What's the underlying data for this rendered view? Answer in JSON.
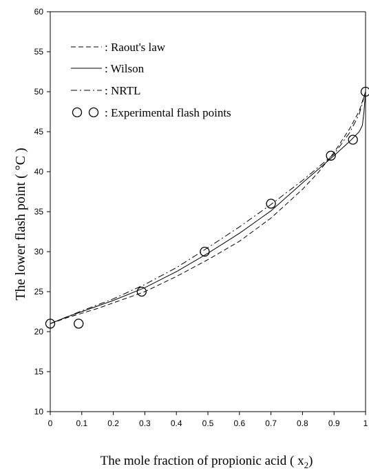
{
  "chart_data": {
    "type": "line",
    "xlabel": "The mole fraction of propionic acid ( x",
    "xlabel_sub": "2",
    "xlabel_close": ")",
    "ylabel": "The lower flash point ( °C )",
    "xlim": [
      0,
      1
    ],
    "ylim": [
      10,
      60
    ],
    "xticks": [
      0,
      0.1,
      0.2,
      0.3,
      0.4,
      0.5,
      0.6,
      0.7,
      0.8,
      0.9,
      1
    ],
    "xtick_labels": [
      "0",
      "0.1",
      "0.2",
      "0.3",
      "0.4",
      "0.5",
      "0.6",
      "0.7",
      "0.8",
      "0.9",
      "1"
    ],
    "yticks": [
      10,
      15,
      20,
      25,
      30,
      35,
      40,
      45,
      50,
      55,
      60
    ],
    "ytick_labels": [
      "10",
      "15",
      "20",
      "25",
      "30",
      "35",
      "40",
      "45",
      "50",
      "55",
      "60"
    ],
    "grid": false,
    "legend_position": "top-left",
    "series": [
      {
        "name": "Raout's law",
        "style": "dashed",
        "x": [
          0,
          0.05,
          0.1,
          0.15,
          0.2,
          0.3,
          0.4,
          0.5,
          0.6,
          0.7,
          0.8,
          0.85,
          0.9,
          0.95,
          0.98,
          1.0
        ],
        "y": [
          21,
          21.7,
          22.3,
          22.9,
          23.6,
          25.0,
          26.9,
          29.0,
          31.3,
          34.2,
          37.8,
          39.9,
          42.4,
          45.4,
          47.6,
          50
        ]
      },
      {
        "name": "Wilson",
        "style": "solid",
        "x": [
          0,
          0.05,
          0.1,
          0.2,
          0.3,
          0.4,
          0.5,
          0.6,
          0.7,
          0.8,
          0.9,
          0.95,
          0.98,
          0.99,
          0.995,
          1.0
        ],
        "y": [
          21,
          21.8,
          22.5,
          23.9,
          25.5,
          27.5,
          29.8,
          32.3,
          35.1,
          38.6,
          42.0,
          43.8,
          45.0,
          45.8,
          47.5,
          50
        ]
      },
      {
        "name": "NRTL",
        "style": "dashdot",
        "x": [
          0,
          0.05,
          0.1,
          0.2,
          0.3,
          0.4,
          0.5,
          0.6,
          0.7,
          0.8,
          0.9,
          0.95,
          0.98,
          1.0
        ],
        "y": [
          21,
          21.8,
          22.6,
          24.1,
          25.9,
          28.0,
          30.5,
          33.1,
          35.9,
          38.9,
          42.2,
          44.9,
          47.2,
          50
        ]
      },
      {
        "name": "Experimental flash points",
        "style": "markers",
        "x": [
          0,
          0.09,
          0.29,
          0.49,
          0.7,
          0.89,
          0.96,
          1.0
        ],
        "y": [
          21,
          21,
          25,
          30,
          36,
          42,
          44,
          50
        ]
      }
    ],
    "legend": [
      {
        "label": ": Raout's law",
        "style": "dashed"
      },
      {
        "label": ": Wilson",
        "style": "solid"
      },
      {
        "label": ": NRTL",
        "style": "dashdot"
      },
      {
        "label": ": Experimental flash points",
        "style": "markers"
      }
    ]
  }
}
